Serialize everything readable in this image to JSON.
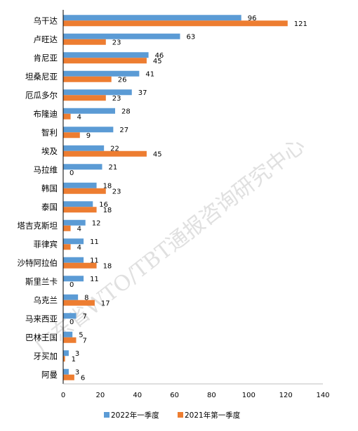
{
  "chart_data": {
    "type": "bar",
    "orientation": "horizontal",
    "categories": [
      "乌干达",
      "卢旺达",
      "肯尼亚",
      "坦桑尼亚",
      "厄瓜多尔",
      "布隆迪",
      "智利",
      "埃及",
      "马拉维",
      "韩国",
      "泰国",
      "塔吉克斯坦",
      "菲律宾",
      "沙特阿拉伯",
      "斯里兰卡",
      "乌克兰",
      "马来西亚",
      "巴林王国",
      "牙买加",
      "阿曼"
    ],
    "series": [
      {
        "name": "2022年一季度",
        "color": "#5b9bd5",
        "values": [
          96,
          63,
          46,
          41,
          37,
          28,
          27,
          22,
          21,
          18,
          16,
          12,
          11,
          11,
          11,
          8,
          7,
          5,
          3,
          3
        ]
      },
      {
        "name": "2021年第一季度",
        "color": "#ed7d31",
        "values": [
          121,
          23,
          45,
          26,
          23,
          4,
          9,
          45,
          0,
          23,
          18,
          4,
          4,
          18,
          0,
          17,
          0,
          7,
          1,
          6
        ]
      }
    ],
    "xlim": [
      0,
      140
    ],
    "xticks": [
      "0",
      "20",
      "40",
      "60",
      "80",
      "100",
      "120",
      "140"
    ],
    "grid": false,
    "legend_position": "bottom",
    "watermark": "广东省WTO/TBT通报咨询研究中心"
  }
}
